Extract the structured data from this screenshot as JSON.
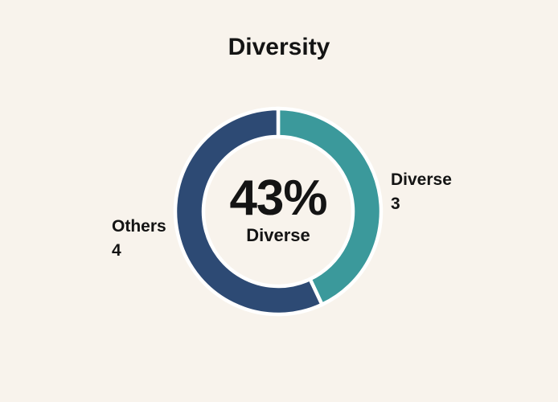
{
  "page": {
    "background_color": "#f8f3ec",
    "text_color": "#141414"
  },
  "chart_data": {
    "type": "pie",
    "subtype": "donut",
    "title": "Diversity",
    "center_value": "43%",
    "center_label": "Diverse",
    "start_angle_deg": 0,
    "direction": "clockwise",
    "separator_color": "#ffffff",
    "legend_position": "callout-labels",
    "segments": [
      {
        "label": "Diverse",
        "value": 3,
        "percent": 43,
        "color": "#3b999b",
        "callout_side": "right"
      },
      {
        "label": "Others",
        "value": 4,
        "percent": 57,
        "color": "#2d4a74",
        "callout_side": "left"
      }
    ]
  }
}
